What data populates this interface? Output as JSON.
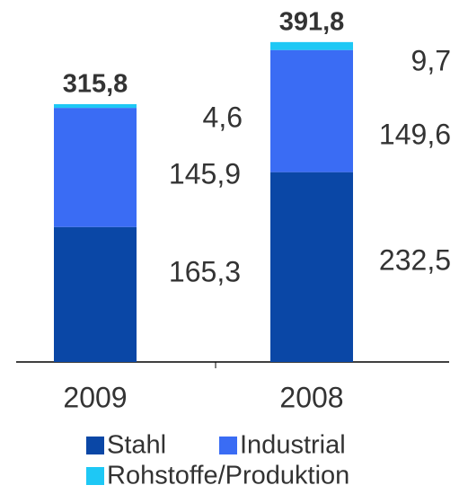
{
  "chart_data": {
    "type": "stacked_bar",
    "categories": [
      "2009",
      "2008"
    ],
    "series": [
      {
        "name": "Stahl",
        "color": "#0a47a6",
        "values": [
          165.3,
          232.5
        ],
        "value_labels": [
          "165,3",
          "232,5"
        ]
      },
      {
        "name": "Industrial",
        "color": "#3a6cf4",
        "values": [
          145.9,
          149.6
        ],
        "value_labels": [
          "145,9",
          "149,6"
        ]
      },
      {
        "name": "Rohstoffe/Produktion",
        "color": "#1ec8f5",
        "values": [
          4.6,
          9.7
        ],
        "value_labels": [
          "4,6",
          "9,7"
        ]
      }
    ],
    "totals": [
      315.8,
      391.8
    ],
    "total_labels": [
      "315,8",
      "391,8"
    ]
  }
}
